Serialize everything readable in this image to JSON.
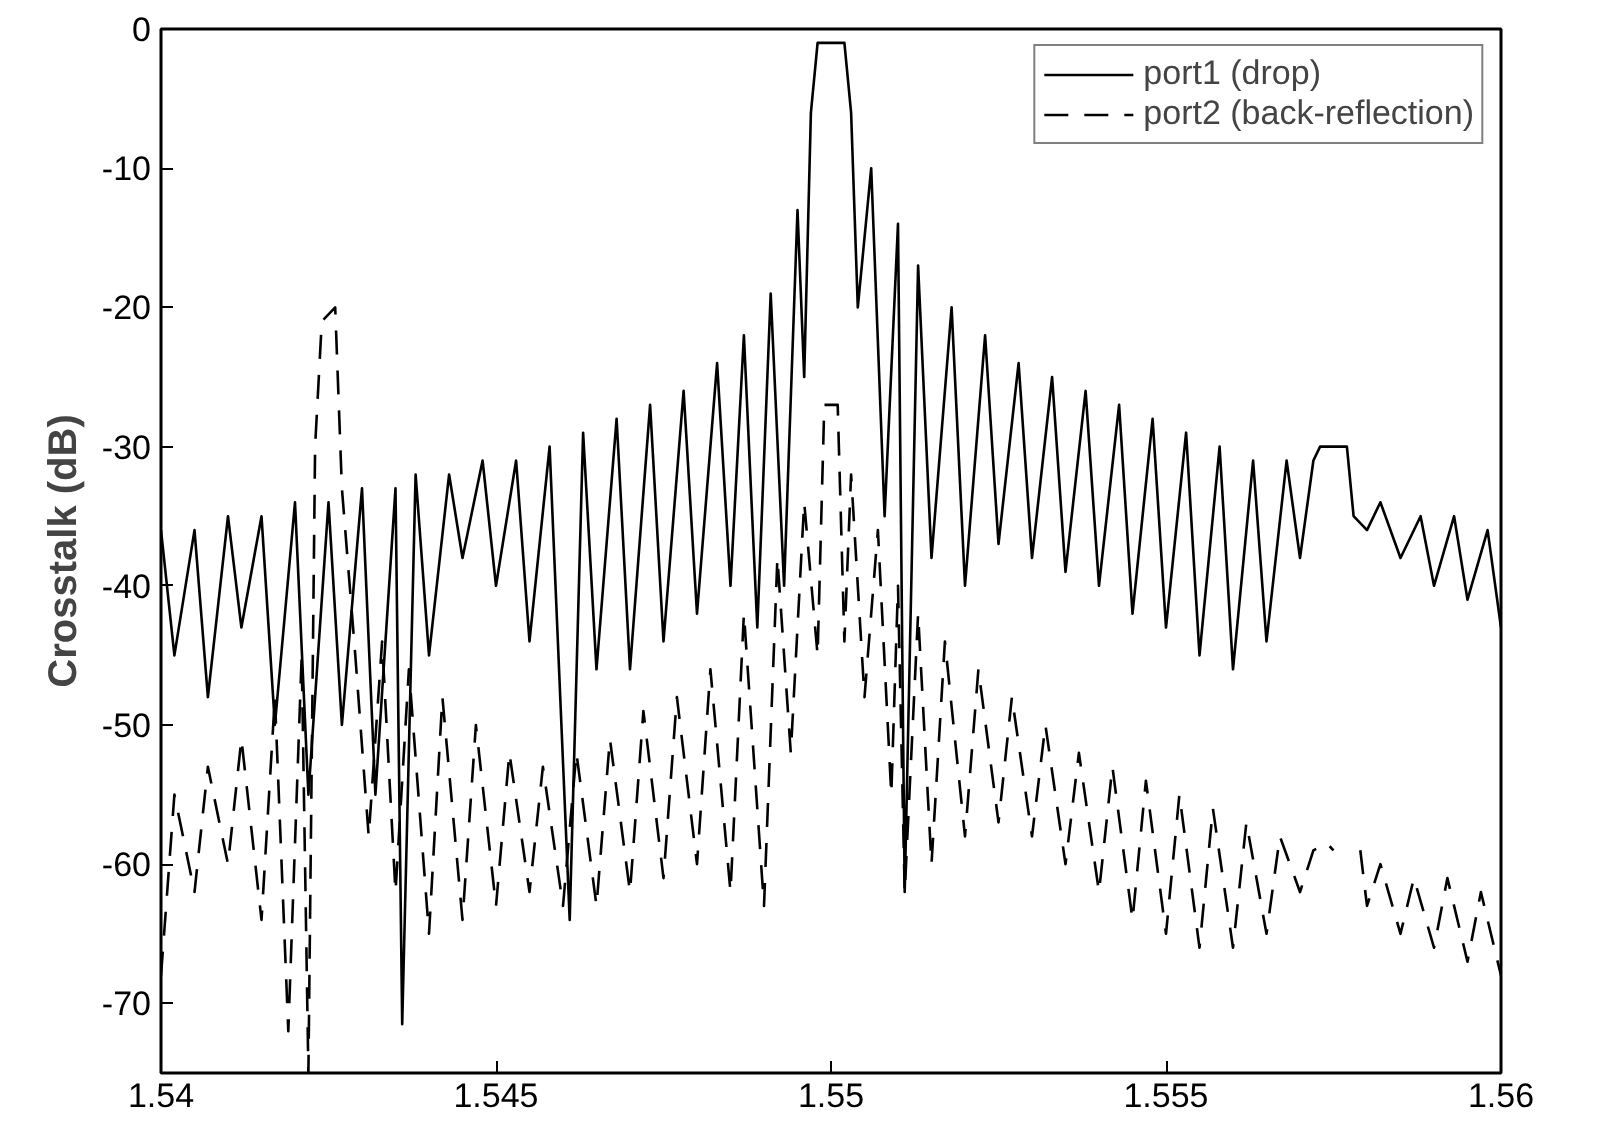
{
  "chart_data": {
    "type": "line",
    "ylabel": "Crosstalk (dB)",
    "xlim": [
      1.54,
      1.56
    ],
    "xticks": [
      1.54,
      1.545,
      1.55,
      1.555,
      1.56
    ],
    "ylim": [
      -75,
      0
    ],
    "yticks": [
      0,
      -10,
      -20,
      -30,
      -40,
      -50,
      -60,
      -70
    ],
    "grid": false,
    "legend": "top right",
    "marker": "none",
    "series": [
      {
        "name": "port1 (drop)",
        "color": "#000000",
        "line_style": "solid",
        "x": [
          1.54,
          1.5402,
          1.5405,
          1.5407,
          1.541,
          1.5412,
          1.5415,
          1.5417,
          1.542,
          1.5422,
          1.5425,
          1.5427,
          1.543,
          1.5432,
          1.5435,
          1.5436,
          1.5438,
          1.544,
          1.5443,
          1.5445,
          1.5448,
          1.545,
          1.5453,
          1.5455,
          1.5458,
          1.5461,
          1.5463,
          1.5465,
          1.5468,
          1.547,
          1.5473,
          1.5475,
          1.5478,
          1.548,
          1.5483,
          1.5485,
          1.5487,
          1.5489,
          1.5491,
          1.5493,
          1.5495,
          1.5496,
          1.5497,
          1.5498,
          1.5502,
          1.5503,
          1.5504,
          1.5506,
          1.5508,
          1.551,
          1.5511,
          1.5513,
          1.5515,
          1.5518,
          1.552,
          1.5523,
          1.5525,
          1.5528,
          1.553,
          1.5533,
          1.5535,
          1.5538,
          1.554,
          1.5543,
          1.5545,
          1.5548,
          1.555,
          1.5553,
          1.5555,
          1.5558,
          1.556,
          1.5563,
          1.5565,
          1.5568,
          1.557,
          1.5572,
          1.5573,
          1.5577,
          1.5578,
          1.558,
          1.5582,
          1.5585,
          1.5588,
          1.559,
          1.5593,
          1.5595,
          1.5598,
          1.56
        ],
        "values": [
          -36,
          -45,
          -36,
          -48,
          -35,
          -43,
          -35,
          -50,
          -34,
          -55,
          -34,
          -50,
          -33,
          -55,
          -33,
          -71.5,
          -32,
          -45,
          -32,
          -38,
          -31,
          -40,
          -31,
          -44,
          -30,
          -64,
          -29,
          -46,
          -28,
          -46,
          -27,
          -44,
          -26,
          -42,
          -24,
          -40,
          -22,
          -43,
          -19,
          -40,
          -13,
          -25,
          -6,
          -1,
          -1,
          -6,
          -20,
          -10,
          -35,
          -14,
          -62,
          -17,
          -38,
          -20,
          -40,
          -22,
          -37,
          -24,
          -38,
          -25,
          -39,
          -26,
          -40,
          -27,
          -42,
          -28,
          -43,
          -29,
          -45,
          -30,
          -46,
          -31,
          -44,
          -31,
          -38,
          -31,
          -30,
          -30,
          -35,
          -36,
          -34,
          -38,
          -35,
          -40,
          -35,
          -41,
          -36,
          -43
        ]
      },
      {
        "name": "port2 (back-reflection)",
        "color": "#000000",
        "line_style": "dashed",
        "x": [
          1.54,
          1.5402,
          1.5405,
          1.5407,
          1.541,
          1.5412,
          1.5415,
          1.5417,
          1.5419,
          1.5421,
          1.5422,
          1.5423,
          1.5424,
          1.5426,
          1.5427,
          1.5429,
          1.5431,
          1.5433,
          1.5435,
          1.5437,
          1.544,
          1.5442,
          1.5445,
          1.5447,
          1.545,
          1.5452,
          1.5455,
          1.5457,
          1.546,
          1.5462,
          1.5465,
          1.5467,
          1.547,
          1.5472,
          1.5475,
          1.5477,
          1.548,
          1.5482,
          1.5485,
          1.5487,
          1.549,
          1.5492,
          1.5494,
          1.5496,
          1.5498,
          1.5499,
          1.5501,
          1.5502,
          1.5503,
          1.5505,
          1.5507,
          1.5509,
          1.551,
          1.5511,
          1.5513,
          1.5515,
          1.5517,
          1.552,
          1.5522,
          1.5525,
          1.5527,
          1.553,
          1.5532,
          1.5535,
          1.5537,
          1.554,
          1.5542,
          1.5545,
          1.5547,
          1.555,
          1.5552,
          1.5555,
          1.5557,
          1.556,
          1.5562,
          1.5565,
          1.5567,
          1.557,
          1.5572,
          1.5574,
          1.5575,
          1.5578,
          1.5579,
          1.558,
          1.5582,
          1.5585,
          1.5587,
          1.559,
          1.5592,
          1.5595,
          1.5597,
          1.56
        ],
        "values": [
          -68,
          -55,
          -62,
          -53,
          -60,
          -51,
          -64,
          -48,
          -72,
          -45,
          -75,
          -30,
          -21,
          -20,
          -33,
          -45,
          -58,
          -44,
          -62,
          -46,
          -65,
          -48,
          -64,
          -50,
          -63,
          -52,
          -62,
          -53,
          -63,
          -52,
          -63,
          -51,
          -62,
          -49,
          -61,
          -48,
          -60,
          -46,
          -62,
          -42,
          -63,
          -38,
          -52,
          -34,
          -45,
          -27,
          -27,
          -44,
          -32,
          -48,
          -36,
          -55,
          -40,
          -62,
          -42,
          -60,
          -44,
          -58,
          -46,
          -57,
          -48,
          -58,
          -50,
          -60,
          -52,
          -62,
          -53,
          -64,
          -54,
          -65,
          -55,
          -66,
          -56,
          -66,
          -57,
          -65,
          -58,
          -62,
          -59,
          -58.5,
          -59,
          null,
          -59,
          -63,
          -60,
          -65,
          -61,
          -66,
          -61,
          -67,
          -62,
          -68
        ]
      }
    ]
  }
}
